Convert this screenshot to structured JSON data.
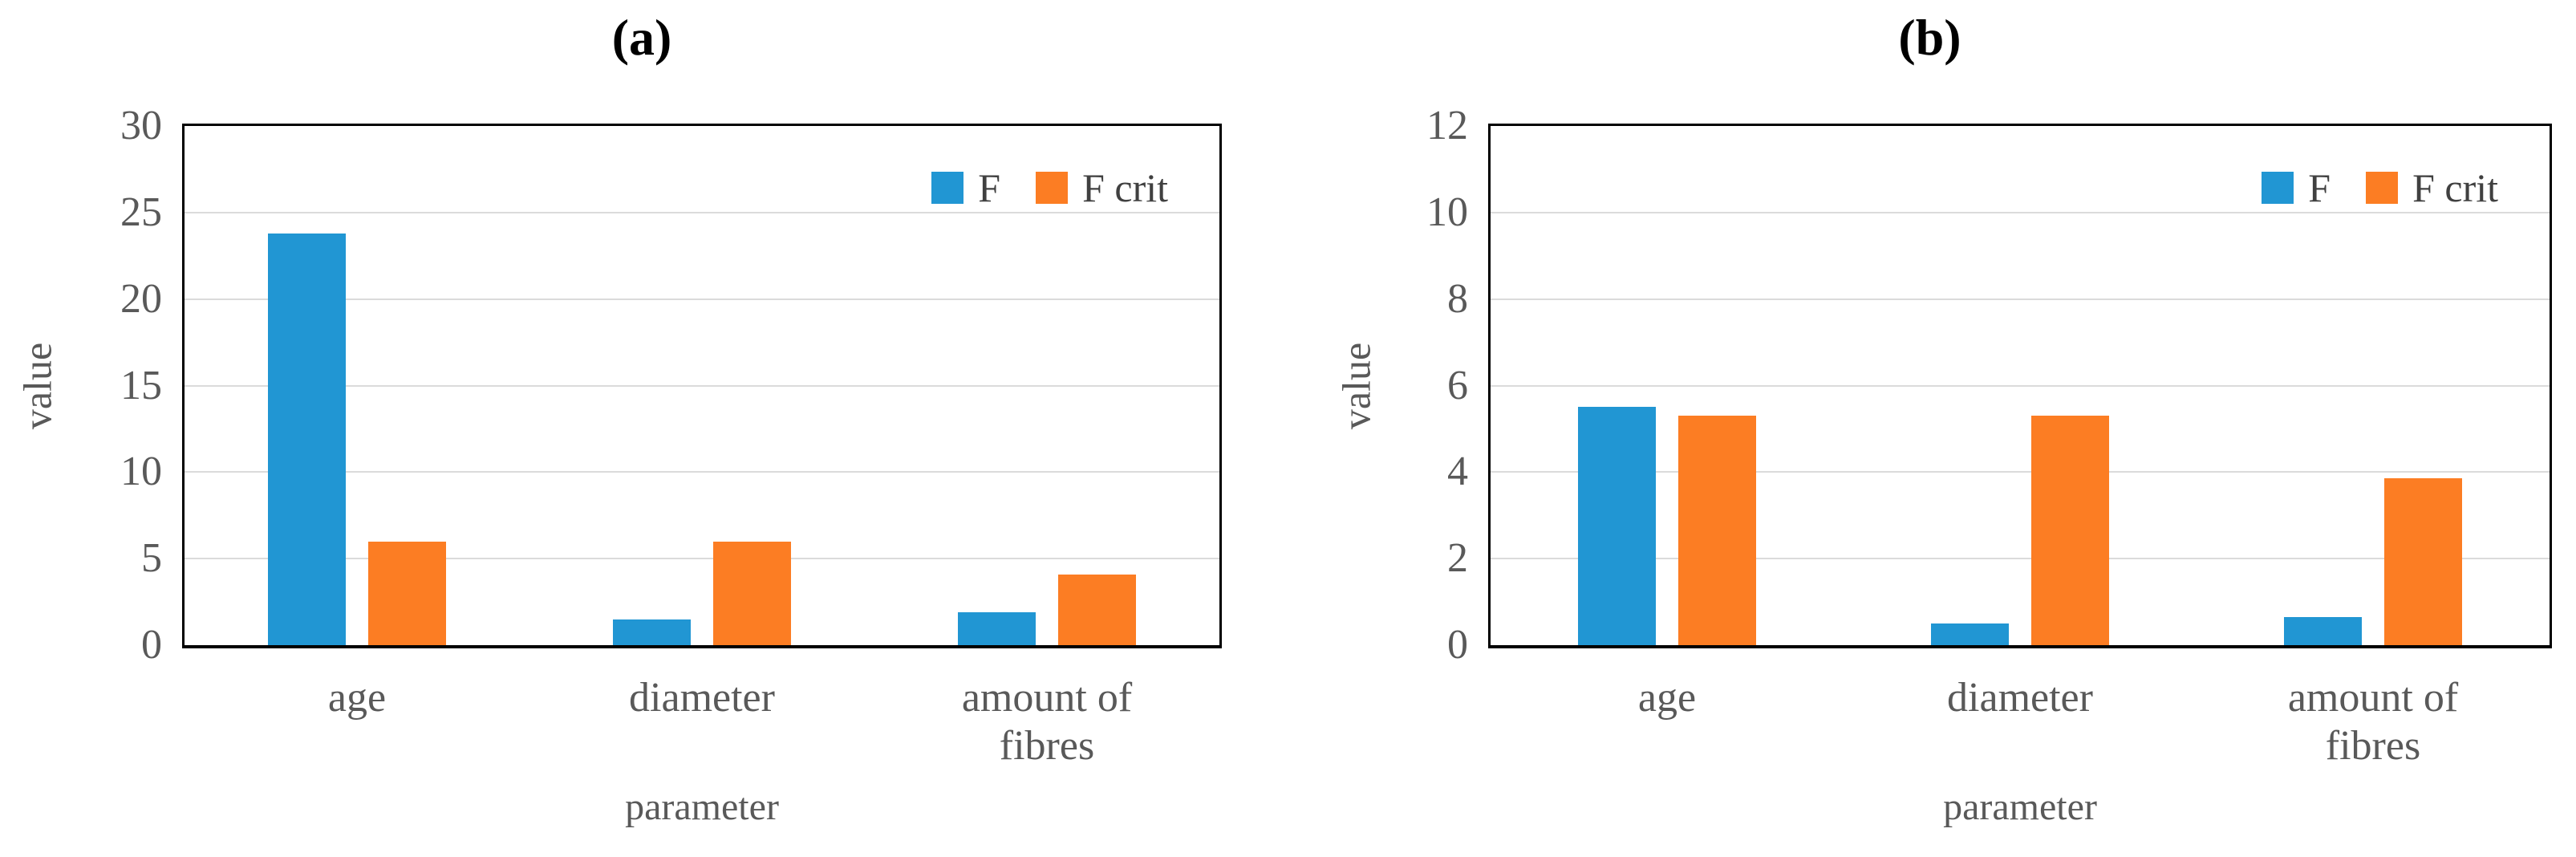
{
  "style": {
    "background": "#ffffff",
    "grid_color": "#DBDBDB",
    "border_color": "#000000",
    "tick_color": "#595959",
    "label_color": "#595959",
    "legend_text_color": "#404040",
    "title_color": "#000000",
    "series_colors": {
      "F": "#2196D3",
      "F_crit": "#FC7D23"
    }
  },
  "chart_data": [
    {
      "type": "bar",
      "title": "(a)",
      "categories": [
        "age",
        "diameter",
        "amount of fibres"
      ],
      "series": [
        {
          "name": "F",
          "color": "#2196D3",
          "values": [
            23.8,
            1.5,
            1.9
          ]
        },
        {
          "name": "F crit",
          "color": "#FC7D23",
          "values": [
            6.0,
            6.0,
            4.1
          ]
        }
      ],
      "xlabel": "parameter",
      "ylabel": "value",
      "ylim": [
        0,
        30
      ],
      "yticks": [
        0,
        5,
        10,
        15,
        20,
        25,
        30
      ],
      "grid": true,
      "legend": [
        "F",
        "F crit"
      ],
      "legend_position": "inside-top-right"
    },
    {
      "type": "bar",
      "title": "(b)",
      "categories": [
        "age",
        "diameter",
        "amount of fibres"
      ],
      "series": [
        {
          "name": "F",
          "color": "#2196D3",
          "values": [
            5.5,
            0.5,
            0.65
          ]
        },
        {
          "name": "F crit",
          "color": "#FC7D23",
          "values": [
            5.3,
            5.3,
            3.85
          ]
        }
      ],
      "xlabel": "parameter",
      "ylabel": "value",
      "ylim": [
        0,
        12
      ],
      "yticks": [
        0,
        2,
        4,
        6,
        8,
        10,
        12
      ],
      "grid": true,
      "legend": [
        "F",
        "F crit"
      ],
      "legend_position": "inside-top-right"
    }
  ]
}
